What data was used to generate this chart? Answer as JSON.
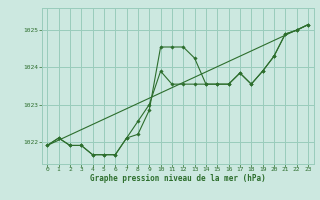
{
  "bg_color": "#cce8e0",
  "grid_color": "#99ccbb",
  "line_color": "#2d6e2d",
  "marker_color": "#2d6e2d",
  "title": "Graphe pression niveau de la mer (hPa)",
  "xlim": [
    -0.5,
    23.5
  ],
  "ylim": [
    1021.4,
    1025.6
  ],
  "yticks": [
    1022,
    1023,
    1024,
    1025
  ],
  "xticks": [
    0,
    1,
    2,
    3,
    4,
    5,
    6,
    7,
    8,
    9,
    10,
    11,
    12,
    13,
    14,
    15,
    16,
    17,
    18,
    19,
    20,
    21,
    22,
    23
  ],
  "series": [
    {
      "x": [
        0,
        1,
        2,
        3,
        4,
        5,
        6,
        7,
        8,
        9,
        10,
        11,
        12,
        13,
        14,
        15,
        16,
        17,
        18,
        19,
        20,
        21,
        22,
        23
      ],
      "y": [
        1021.9,
        1022.1,
        1021.9,
        1021.9,
        1021.65,
        1021.65,
        1021.65,
        1022.1,
        1022.2,
        1022.85,
        1024.55,
        1024.55,
        1024.55,
        1024.25,
        1023.55,
        1023.55,
        1023.55,
        1023.85,
        1023.55,
        1023.9,
        1024.3,
        1024.9,
        1025.0,
        1025.15
      ]
    },
    {
      "x": [
        0,
        1,
        2,
        3,
        4,
        5,
        6,
        7,
        8,
        9,
        10,
        11,
        12,
        13,
        14,
        15,
        16,
        17,
        18,
        19,
        20,
        21,
        22,
        23
      ],
      "y": [
        1021.9,
        1022.1,
        1021.9,
        1021.9,
        1021.65,
        1021.65,
        1021.65,
        1022.1,
        1022.55,
        1023.0,
        1023.9,
        1023.55,
        1023.55,
        1023.55,
        1023.55,
        1023.55,
        1023.55,
        1023.85,
        1023.55,
        1023.9,
        1024.3,
        1024.9,
        1025.0,
        1025.15
      ]
    },
    {
      "x": [
        0,
        23
      ],
      "y": [
        1021.9,
        1025.15
      ]
    }
  ]
}
